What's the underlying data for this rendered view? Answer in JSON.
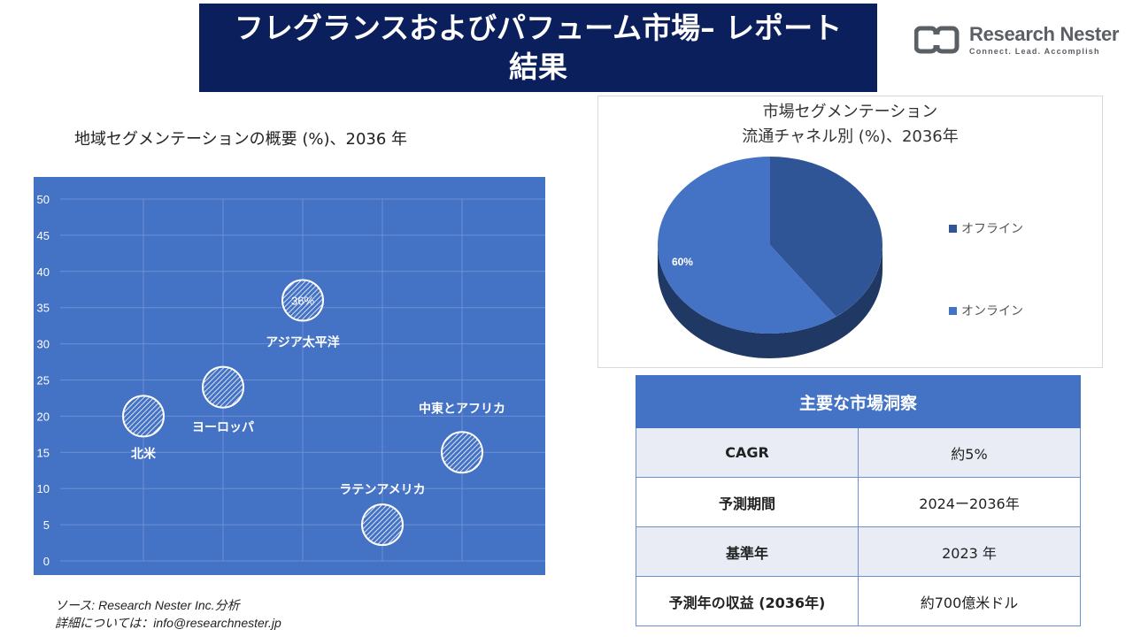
{
  "header": {
    "title": "フレグランスおよびパフューム市場– レポート結果"
  },
  "logo": {
    "name": "Research Nester",
    "tagline": "Connect. Lead. Accomplish"
  },
  "source": {
    "line1": "ソース: Research Nester Inc.分析",
    "line2": "詳細については：info@researchnester.jp"
  },
  "colors": {
    "title_bg": "#0a1f5c",
    "chart_bg": "#4472c4",
    "pie_offline": "#2f5597",
    "pie_online": "#4472c4"
  },
  "chart_data": [
    {
      "type": "scatter",
      "title": "地域セグメンテーションの概要 (%)、2036 年",
      "ylim": [
        0,
        50
      ],
      "yticks": [
        0,
        5,
        10,
        15,
        20,
        25,
        30,
        35,
        40,
        45,
        50
      ],
      "grid": true,
      "points": [
        {
          "label": "北米",
          "x": 1,
          "y": 20
        },
        {
          "label": "ヨーロッパ",
          "x": 2,
          "y": 24
        },
        {
          "label": "アジア太平洋",
          "x": 3,
          "y": 36,
          "data_label": "36%"
        },
        {
          "label": "ラテンアメリカ",
          "x": 4,
          "y": 5
        },
        {
          "label": "中東とアフリカ",
          "x": 5,
          "y": 15
        }
      ]
    },
    {
      "type": "pie",
      "title_line1": "市場セグメンテーション",
      "title_line2": "流通チャネル別 (%)、2036年",
      "legend_position": "right",
      "slices": [
        {
          "name": "オフライン",
          "value": 40
        },
        {
          "name": "オンライン",
          "value": 60,
          "data_label": "60%"
        }
      ]
    }
  ],
  "insights": {
    "heading": "主要な市場洞察",
    "rows": [
      {
        "key": "CAGR",
        "value": "約5%"
      },
      {
        "key": "予測期間",
        "value": "2024ー2036年"
      },
      {
        "key": "基準年",
        "value": "2023 年"
      },
      {
        "key": "予測年の収益 (2036年)",
        "value": "約700億米ドル"
      }
    ]
  }
}
